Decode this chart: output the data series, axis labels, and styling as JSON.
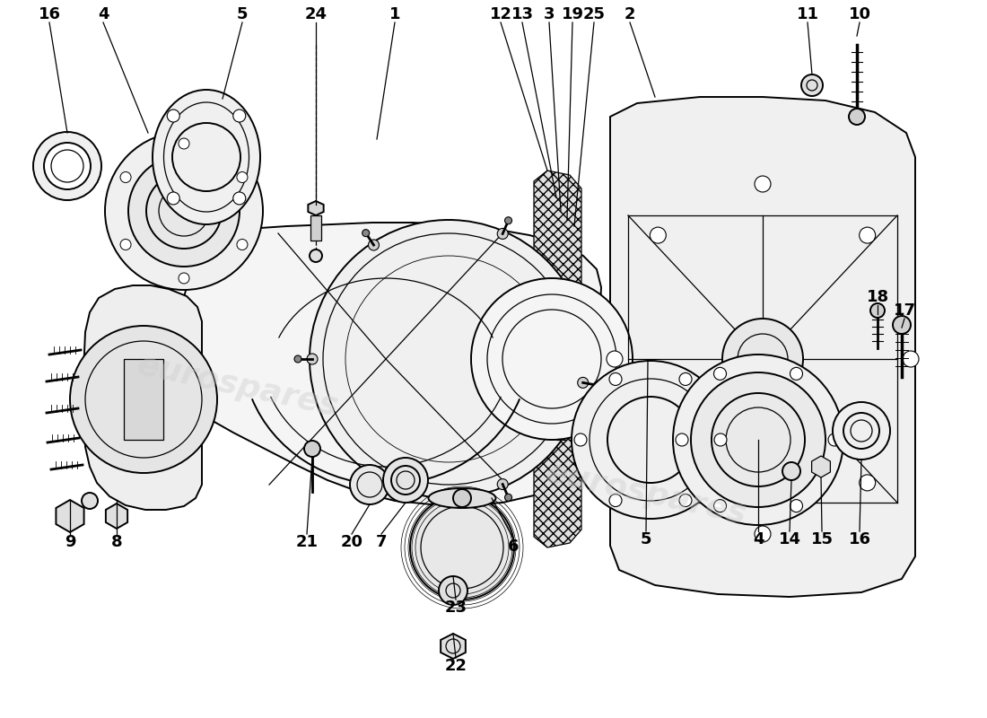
{
  "bg": "#ffffff",
  "lc": "#000000",
  "wm_color": "#cccccc",
  "wm_alpha": 0.4,
  "fig_w": 11.0,
  "fig_h": 8.0,
  "dpi": 100,
  "top_labels": [
    [
      "16",
      55,
      28
    ],
    [
      "4",
      115,
      28
    ],
    [
      "5",
      270,
      28
    ],
    [
      "24",
      350,
      28
    ],
    [
      "1",
      430,
      28
    ],
    [
      "12",
      555,
      28
    ],
    [
      "13",
      582,
      28
    ],
    [
      "3",
      610,
      28
    ],
    [
      "19",
      635,
      28
    ],
    [
      "25",
      658,
      28
    ],
    [
      "2",
      700,
      28
    ],
    [
      "11",
      900,
      28
    ],
    [
      "10",
      955,
      28
    ]
  ],
  "right_labels": [
    [
      "18",
      975,
      380
    ],
    [
      "17",
      1005,
      390
    ]
  ],
  "bottom_labels": [
    [
      "9",
      78,
      590
    ],
    [
      "8",
      130,
      590
    ],
    [
      "21",
      340,
      585
    ],
    [
      "20",
      390,
      585
    ],
    [
      "7",
      425,
      590
    ],
    [
      "6",
      570,
      590
    ],
    [
      "5",
      720,
      580
    ],
    [
      "4",
      845,
      580
    ],
    [
      "14",
      882,
      580
    ],
    [
      "15",
      917,
      580
    ],
    [
      "16",
      955,
      580
    ],
    [
      "23",
      505,
      660
    ],
    [
      "22",
      505,
      725
    ]
  ]
}
